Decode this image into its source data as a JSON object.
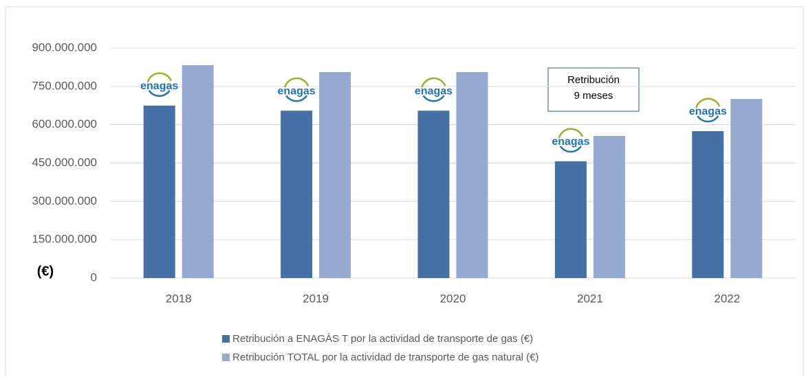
{
  "chart_data": {
    "type": "bar",
    "y_label": "(€)",
    "categories": [
      "2018",
      "2019",
      "2020",
      "2021",
      "2022"
    ],
    "series": [
      {
        "name": "Retribución a ENAGÁS T por la actividad de transporte de gas (€)",
        "color": "#4671a6",
        "values": [
          675000000,
          655000000,
          655000000,
          457000000,
          575000000
        ]
      },
      {
        "name": "Retribución TOTAL por la actividad de transporte de gas natural (€)",
        "color": "#95a9d1",
        "values": [
          833000000,
          806000000,
          806000000,
          556000000,
          701000000
        ]
      }
    ],
    "ylim": [
      0,
      900000000
    ],
    "yticks": [
      0,
      {
        "value": 150000000,
        "label": "150.000.000"
      },
      {
        "value": 300000000,
        "label": "300.000.000"
      },
      {
        "value": 450000000,
        "label": "450.000.000"
      },
      {
        "value": 600000000,
        "label": "600.000.000"
      },
      {
        "value": 750000000,
        "label": "750.000.000"
      },
      {
        "value": 900000000,
        "label": "900.000.000"
      }
    ],
    "grid": true,
    "legend": "bottom",
    "logo_text": "enagas",
    "annotation": [
      "Retribución",
      "9 meses"
    ]
  }
}
